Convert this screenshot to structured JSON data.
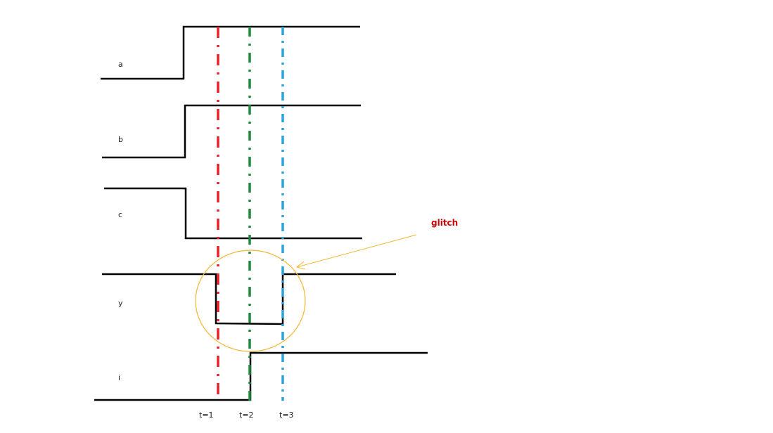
{
  "signals": [
    {
      "name": "a"
    },
    {
      "name": "b"
    },
    {
      "name": "c"
    },
    {
      "name": "y"
    },
    {
      "name": "i"
    }
  ],
  "time_markers": [
    {
      "label": "t=1",
      "color": "#e8202a"
    },
    {
      "label": "t=2",
      "color": "#1b8a3a"
    },
    {
      "label": "t=3",
      "color": "#2aa3d8"
    }
  ],
  "annotation": {
    "label": "glitch",
    "label_color": "#cc0000",
    "highlight_color": "#f2b632"
  },
  "colors": {
    "waveform": "#000000",
    "background": "#ffffff"
  }
}
